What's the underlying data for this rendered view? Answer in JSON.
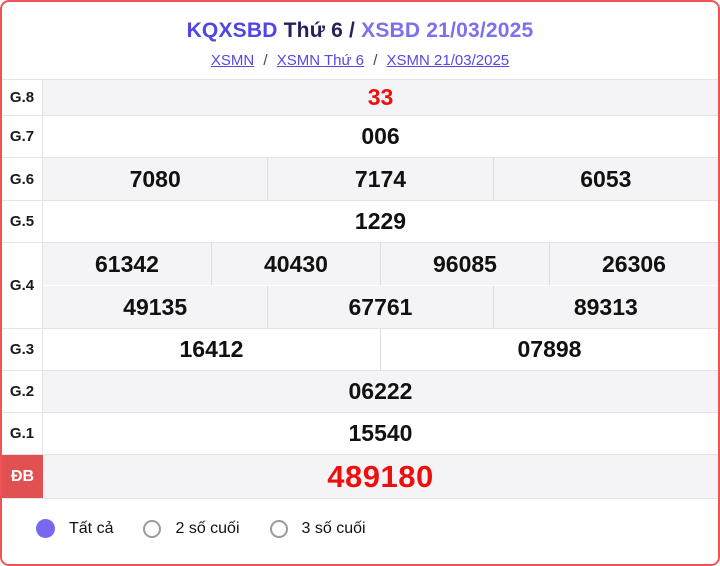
{
  "header": {
    "title": {
      "brand": "KQXSBD",
      "middle": " Thứ 6 / ",
      "date": "XSBD 21/03/2025"
    },
    "breadcrumb": {
      "items": [
        "XSMN",
        "XSMN Thứ 6",
        "XSMN 21/03/2025"
      ],
      "separator": "/"
    }
  },
  "table": {
    "rows": [
      {
        "label": "G.8",
        "cells": [
          [
            "33"
          ]
        ],
        "shaded": true,
        "red": true,
        "special": false
      },
      {
        "label": "G.7",
        "cells": [
          [
            "006"
          ]
        ],
        "shaded": false,
        "red": false,
        "special": false
      },
      {
        "label": "G.6",
        "cells": [
          [
            "7080",
            "7174",
            "6053"
          ]
        ],
        "shaded": true,
        "red": false,
        "special": false
      },
      {
        "label": "G.5",
        "cells": [
          [
            "1229"
          ]
        ],
        "shaded": false,
        "red": false,
        "special": false
      },
      {
        "label": "G.4",
        "cells": [
          [
            "61342",
            "40430",
            "96085",
            "26306"
          ],
          [
            "49135",
            "67761",
            "89313"
          ]
        ],
        "shaded": true,
        "red": false,
        "special": false
      },
      {
        "label": "G.3",
        "cells": [
          [
            "16412",
            "07898"
          ]
        ],
        "shaded": false,
        "red": false,
        "special": false
      },
      {
        "label": "G.2",
        "cells": [
          [
            "06222"
          ]
        ],
        "shaded": true,
        "red": false,
        "special": false
      },
      {
        "label": "G.1",
        "cells": [
          [
            "15540"
          ]
        ],
        "shaded": false,
        "red": false,
        "special": false
      },
      {
        "label": "ĐB",
        "cells": [
          [
            "489180"
          ]
        ],
        "shaded": true,
        "red": true,
        "special": true
      }
    ]
  },
  "footer": {
    "options": [
      {
        "label": "Tất cả",
        "selected": true
      },
      {
        "label": "2 số cuối",
        "selected": false
      },
      {
        "label": "3 số cuối",
        "selected": false
      }
    ]
  },
  "colors": {
    "border": "#ee5456",
    "brand": "#4f46e5",
    "dark": "#23235a",
    "date": "#7b71ed",
    "link": "#544ae4",
    "red": "#ee0e0e",
    "badge": "#e25152",
    "shade": "#f4f3f5",
    "radio": "#7769ef"
  }
}
